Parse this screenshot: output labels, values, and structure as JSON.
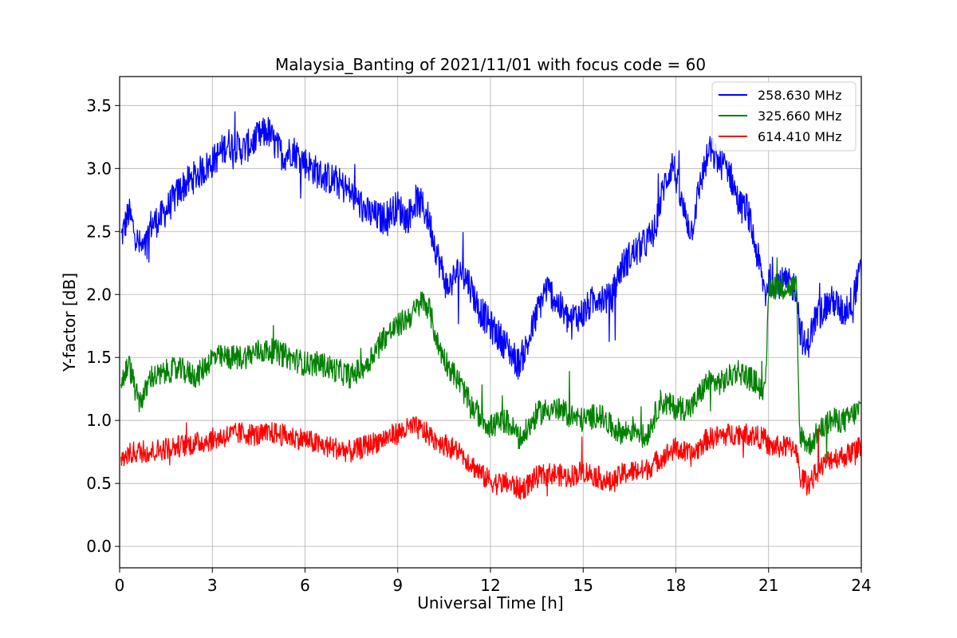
{
  "chart_data": {
    "type": "line",
    "title": "Malaysia_Banting of 2021/11/01 with focus code = 60",
    "xlabel": "Universal Time [h]",
    "ylabel": "Y-factor [dB]",
    "xlim": [
      0,
      24
    ],
    "ylim": [
      -0.17,
      3.73
    ],
    "xticks": [
      0,
      3,
      6,
      9,
      12,
      15,
      18,
      21,
      24
    ],
    "xtick_labels": [
      "0",
      "3",
      "6",
      "9",
      "12",
      "15",
      "18",
      "21",
      "24"
    ],
    "yticks": [
      0.0,
      0.5,
      1.0,
      1.5,
      2.0,
      2.5,
      3.0,
      3.5
    ],
    "ytick_labels": [
      "0.0",
      "0.5",
      "1.0",
      "1.5",
      "2.0",
      "2.5",
      "3.0",
      "3.5"
    ],
    "grid": true,
    "legend_position": "top-right",
    "series": [
      {
        "name": "258.630 MHz",
        "color": "#0000ff",
        "x": [
          0.05,
          0.3,
          0.6,
          0.8,
          1.0,
          1.3,
          1.6,
          2.0,
          2.5,
          3.0,
          3.5,
          4.0,
          4.5,
          4.8,
          5.0,
          5.3,
          5.6,
          6.0,
          6.5,
          7.0,
          7.5,
          8.0,
          8.5,
          9.0,
          9.3,
          9.6,
          9.8,
          10.0,
          10.3,
          10.6,
          11.0,
          11.3,
          11.6,
          12.0,
          12.5,
          12.9,
          13.2,
          13.5,
          13.8,
          14.0,
          14.5,
          15.0,
          15.5,
          15.9,
          16.2,
          16.5,
          17.0,
          17.3,
          17.6,
          17.9,
          18.2,
          18.5,
          18.8,
          19.1,
          19.4,
          19.7,
          20.0,
          20.1,
          20.3,
          20.6,
          20.9,
          21.0,
          21.9,
          22.0,
          22.2,
          22.5,
          22.8,
          23.1,
          23.4,
          23.7,
          24.0
        ],
        "values": [
          2.45,
          2.65,
          2.4,
          2.35,
          2.55,
          2.6,
          2.7,
          2.85,
          2.95,
          3.05,
          3.2,
          3.15,
          3.25,
          3.3,
          3.2,
          3.1,
          3.15,
          3.05,
          2.95,
          2.9,
          2.8,
          2.65,
          2.6,
          2.7,
          2.6,
          2.75,
          2.7,
          2.6,
          2.3,
          2.05,
          2.2,
          2.1,
          1.9,
          1.75,
          1.6,
          1.45,
          1.6,
          1.85,
          2.05,
          2.0,
          1.8,
          1.85,
          2.0,
          1.95,
          2.2,
          2.3,
          2.4,
          2.5,
          2.85,
          3.05,
          2.7,
          2.5,
          2.9,
          3.15,
          3.05,
          3.0,
          2.75,
          2.7,
          2.68,
          2.35,
          2.0,
          2.12,
          2.06,
          1.75,
          1.55,
          1.8,
          1.9,
          1.95,
          1.85,
          1.95,
          2.2
        ],
        "noise": 0.13
      },
      {
        "name": "325.660 MHz",
        "color": "#008000",
        "x": [
          0.05,
          0.3,
          0.6,
          0.8,
          1.0,
          1.3,
          1.6,
          2.0,
          2.5,
          3.0,
          3.5,
          4.0,
          4.5,
          5.0,
          5.5,
          6.0,
          6.5,
          7.0,
          7.5,
          8.0,
          8.5,
          9.0,
          9.5,
          9.8,
          10.0,
          10.3,
          10.6,
          11.0,
          11.3,
          11.6,
          12.0,
          12.5,
          13.0,
          13.5,
          14.0,
          14.5,
          15.0,
          15.5,
          15.9,
          16.3,
          16.7,
          17.0,
          17.5,
          18.0,
          18.5,
          19.0,
          19.5,
          20.0,
          20.1,
          20.3,
          20.6,
          20.9,
          21.0,
          21.9,
          22.0,
          22.3,
          22.6,
          23.0,
          23.5,
          24.0
        ],
        "values": [
          1.3,
          1.45,
          1.15,
          1.2,
          1.35,
          1.35,
          1.4,
          1.4,
          1.35,
          1.5,
          1.5,
          1.5,
          1.55,
          1.55,
          1.5,
          1.45,
          1.45,
          1.4,
          1.35,
          1.45,
          1.65,
          1.75,
          1.85,
          1.95,
          1.9,
          1.6,
          1.45,
          1.3,
          1.15,
          1.05,
          0.95,
          1.0,
          0.85,
          1.05,
          1.1,
          1.05,
          1.0,
          1.05,
          0.95,
          0.9,
          0.95,
          0.85,
          1.15,
          1.1,
          1.1,
          1.3,
          1.3,
          1.4,
          1.38,
          1.35,
          1.3,
          1.2,
          2.06,
          2.06,
          0.9,
          0.8,
          0.9,
          1.0,
          1.0,
          1.1
        ],
        "noise": 0.1
      },
      {
        "name": "614.410 MHz",
        "color": "#ff0000",
        "x": [
          0.05,
          0.5,
          1.0,
          1.5,
          2.0,
          2.5,
          3.0,
          3.5,
          4.0,
          4.5,
          5.0,
          5.5,
          6.0,
          6.5,
          7.0,
          7.5,
          8.0,
          8.5,
          9.0,
          9.5,
          9.8,
          10.2,
          10.6,
          11.0,
          11.4,
          11.8,
          12.2,
          12.6,
          13.0,
          13.5,
          14.0,
          14.5,
          15.0,
          15.5,
          15.9,
          16.3,
          16.7,
          17.0,
          17.5,
          18.0,
          18.5,
          19.0,
          19.5,
          20.0,
          20.1,
          20.5,
          20.9,
          21.0,
          21.9,
          22.0,
          22.3,
          22.6,
          23.0,
          23.5,
          24.0
        ],
        "values": [
          0.7,
          0.75,
          0.75,
          0.78,
          0.8,
          0.82,
          0.85,
          0.88,
          0.9,
          0.88,
          0.9,
          0.87,
          0.85,
          0.8,
          0.78,
          0.75,
          0.8,
          0.85,
          0.9,
          0.95,
          0.92,
          0.85,
          0.8,
          0.75,
          0.65,
          0.55,
          0.5,
          0.5,
          0.45,
          0.55,
          0.58,
          0.55,
          0.6,
          0.55,
          0.5,
          0.58,
          0.6,
          0.6,
          0.7,
          0.78,
          0.72,
          0.85,
          0.88,
          0.9,
          0.9,
          0.88,
          0.85,
          0.79,
          0.79,
          0.55,
          0.5,
          0.6,
          0.7,
          0.72,
          0.8
        ],
        "noise": 0.09
      }
    ]
  }
}
